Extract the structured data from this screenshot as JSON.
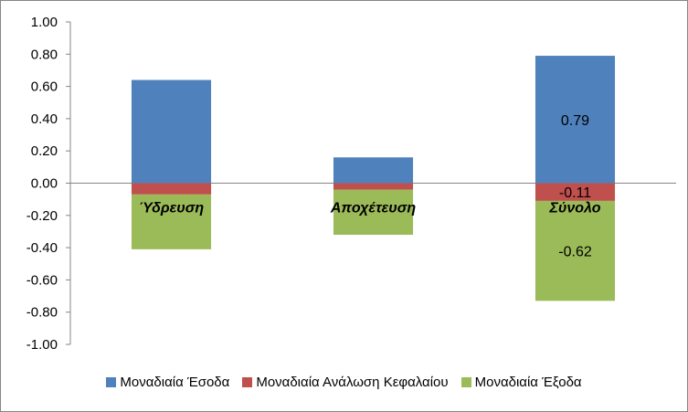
{
  "chart_data": {
    "type": "bar",
    "stacked": true,
    "categories": [
      "Ύδρευση",
      "Αποχέτευση",
      "Σύνολο"
    ],
    "series": [
      {
        "name": "Μοναδιαία Έσοδα",
        "color": "#4F81BD",
        "values": [
          0.64,
          0.16,
          0.79
        ]
      },
      {
        "name": "Μοναδιαία Ανάλωση Κεφαλαίου",
        "color": "#C0504D",
        "values": [
          -0.07,
          -0.04,
          -0.11
        ]
      },
      {
        "name": "Μοναδιαία Έξοδα",
        "color": "#9BBB59",
        "values": [
          -0.34,
          -0.28,
          -0.62
        ]
      }
    ],
    "data_labels": [
      {
        "category": "Σύνολο",
        "series": "Μοναδιαία Έσοδα",
        "text": "0.79"
      },
      {
        "category": "Σύνολο",
        "series": "Μοναδιαία Ανάλωση Κεφαλαίου",
        "text": "-0.11"
      },
      {
        "category": "Σύνολο",
        "series": "Μοναδιαία Έξοδα",
        "text": "-0.62"
      }
    ],
    "ylim": [
      -1.0,
      1.0
    ],
    "yticks": [
      "1.00",
      "0.80",
      "0.60",
      "0.40",
      "0.20",
      "0.00",
      "-0.20",
      "-0.40",
      "-0.60",
      "-0.80",
      "-1.00"
    ],
    "ytick_values": [
      1.0,
      0.8,
      0.6,
      0.4,
      0.2,
      0.0,
      -0.2,
      -0.4,
      -0.6,
      -0.8,
      -1.0
    ],
    "grid": false,
    "legend_position": "bottom",
    "title": "",
    "xlabel": "",
    "ylabel": ""
  }
}
